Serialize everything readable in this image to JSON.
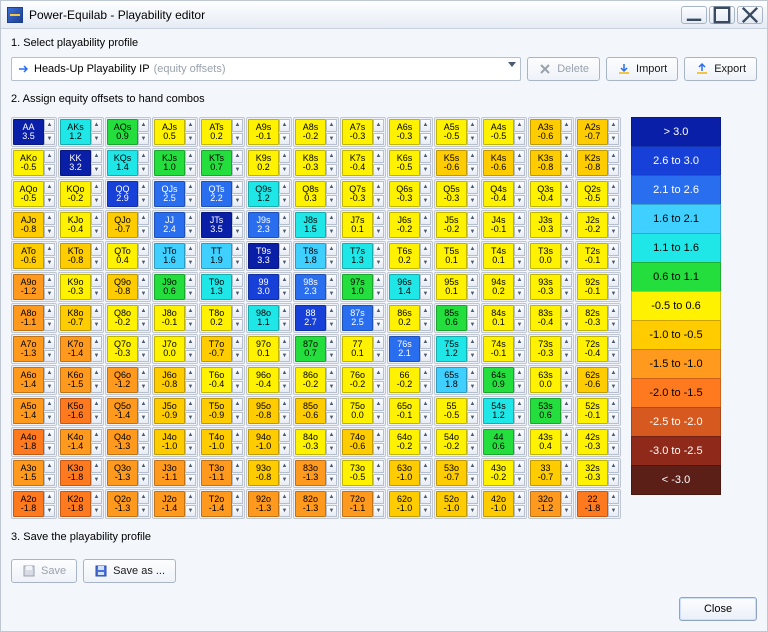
{
  "window": {
    "title": "Power-Equilab - Playability editor"
  },
  "section1": {
    "label": "1. Select playability profile",
    "profile": "Heads-Up Playability IP",
    "hint": "(equity offsets)",
    "delete": "Delete",
    "import": "Import",
    "export": "Export"
  },
  "section2": {
    "label": "2. Assign equity offsets to hand combos"
  },
  "section3": {
    "label": "3. Save the playability profile",
    "save": "Save",
    "saveas": "Save as ..."
  },
  "footer": {
    "close": "Close"
  },
  "legend": [
    {
      "label": "> 3.0",
      "bg": "#0a1fa8",
      "fg": "#ffffff"
    },
    {
      "label": "2.6 to 3.0",
      "bg": "#1740d8",
      "fg": "#ffffff"
    },
    {
      "label": "2.1 to 2.6",
      "bg": "#2a6ef0",
      "fg": "#ffffff"
    },
    {
      "label": "1.6 to 2.1",
      "bg": "#3fd0ff",
      "fg": "#000000"
    },
    {
      "label": "1.1 to 1.6",
      "bg": "#20e7e7",
      "fg": "#000000"
    },
    {
      "label": "0.6 to 1.1",
      "bg": "#23de3c",
      "fg": "#000000"
    },
    {
      "label": "-0.5 to 0.6",
      "bg": "#fff200",
      "fg": "#000000"
    },
    {
      "label": "-1.0 to -0.5",
      "bg": "#ffcc00",
      "fg": "#000000"
    },
    {
      "label": "-1.5 to -1.0",
      "bg": "#ff9a1f",
      "fg": "#000000"
    },
    {
      "label": "-2.0 to -1.5",
      "bg": "#ff7a1f",
      "fg": "#000000"
    },
    {
      "label": "-2.5 to -2.0",
      "bg": "#d65a1f",
      "fg": "#ffffff"
    },
    {
      "label": "-3.0 to -2.5",
      "bg": "#8f2a1a",
      "fg": "#ffffff"
    },
    {
      "label": "< -3.0",
      "bg": "#5c1f18",
      "fg": "#ffffff"
    }
  ],
  "ranks": [
    "A",
    "K",
    "Q",
    "J",
    "T",
    "9",
    "8",
    "7",
    "6",
    "5",
    "4",
    "3",
    "2"
  ],
  "grid": [
    [
      3.5,
      1.2,
      0.9,
      0.5,
      0.2,
      -0.1,
      -0.2,
      -0.3,
      -0.3,
      -0.5,
      -0.5,
      -0.6,
      -0.7
    ],
    [
      -0.5,
      3.2,
      1.4,
      1.0,
      0.7,
      0.2,
      -0.3,
      -0.4,
      -0.5,
      -0.6,
      -0.6,
      -0.8,
      -0.8
    ],
    [
      -0.5,
      -0.2,
      2.9,
      2.5,
      2.2,
      1.2,
      0.3,
      -0.3,
      -0.3,
      -0.3,
      -0.4,
      -0.4,
      -0.5
    ],
    [
      -0.8,
      -0.4,
      -0.7,
      2.4,
      3.5,
      2.3,
      1.5,
      0.1,
      -0.2,
      -0.2,
      -0.1,
      -0.3,
      -0.2
    ],
    [
      -0.6,
      -0.8,
      0.4,
      1.6,
      1.9,
      3.3,
      1.8,
      1.3,
      0.2,
      0.1,
      0.1,
      0.0,
      -0.1
    ],
    [
      -1.2,
      -0.3,
      -0.8,
      0.6,
      1.3,
      3.0,
      2.3,
      1.0,
      1.4,
      0.1,
      0.2,
      -0.3,
      -0.1
    ],
    [
      -1.1,
      -0.7,
      -0.2,
      -0.1,
      0.2,
      1.1,
      2.7,
      2.5,
      0.2,
      0.6,
      0.1,
      -0.4,
      -0.3
    ],
    [
      -1.3,
      -1.4,
      -0.3,
      0.0,
      -0.7,
      0.1,
      0.7,
      0.1,
      2.1,
      1.2,
      -0.1,
      -0.3,
      -0.4
    ],
    [
      -1.4,
      -1.5,
      -1.2,
      -0.8,
      -0.4,
      -0.4,
      -0.2,
      -0.2,
      -0.2,
      1.8,
      0.9,
      0.0,
      -0.6
    ],
    [
      -1.4,
      -1.6,
      -1.4,
      -0.9,
      -0.9,
      -0.8,
      -0.6,
      0.0,
      -0.1,
      -0.5,
      1.2,
      0.6,
      -0.1
    ],
    [
      -1.8,
      -1.4,
      -1.3,
      -1.0,
      -1.0,
      -1.0,
      -0.3,
      -0.6,
      -0.2,
      -0.2,
      0.6,
      0.4,
      -0.3
    ],
    [
      -1.5,
      -1.8,
      -1.3,
      -1.1,
      -1.1,
      -0.8,
      -1.3,
      -0.5,
      -1.0,
      -0.7,
      -0.2,
      -0.7,
      -0.3
    ],
    [
      -1.8,
      -1.8,
      -1.3,
      -1.4,
      -1.4,
      -1.3,
      -1.3,
      -1.1,
      -1.0,
      -1.0,
      -1.0,
      -1.2,
      -1.8
    ]
  ]
}
